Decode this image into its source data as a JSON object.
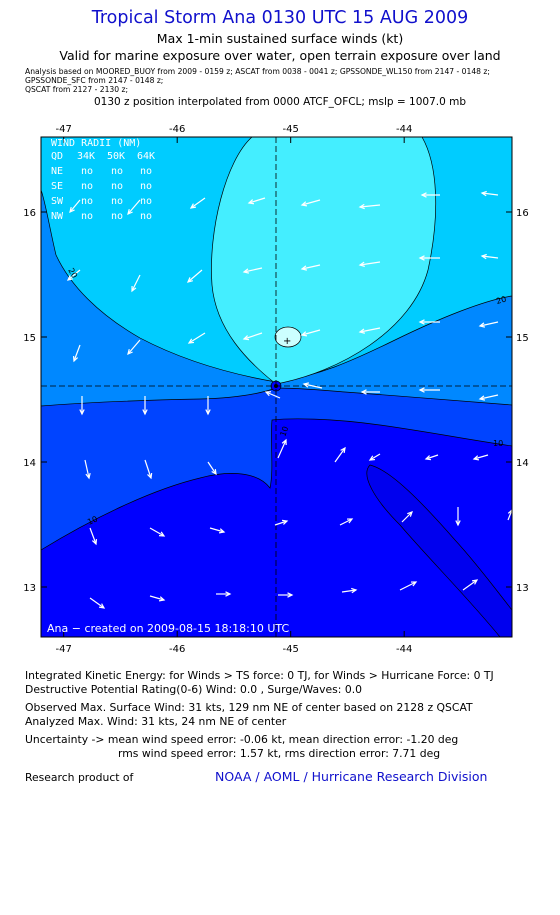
{
  "header": {
    "title": "Tropical Storm Ana 0130 UTC 15 AUG 2009",
    "subtitle": "Max 1-min sustained surface winds (kt)",
    "validity": "Valid for marine exposure over water, open terrain exposure over land",
    "analysis_lines": [
      "Analysis based on   MOORED_BUOY from 2009 - 0159 z;  ASCAT from 0038 - 0041 z;  GPSSONDE_WL150 from 2147 - 0148 z;",
      "GPSSONDE_SFC from 2147 - 0148 z;",
      "QSCAT from 2127 - 2130 z;"
    ],
    "position_line": "0130 z position interpolated from 0000 ATCF_OFCL; mslp = 1007.0 mb"
  },
  "map": {
    "lon_range": [
      -47.2,
      -43.05
    ],
    "lat_range": [
      12.6,
      16.6
    ],
    "lon_ticks": [
      "-47",
      "-46",
      "-45",
      "-44"
    ],
    "lat_ticks": [
      "13",
      "14",
      "15",
      "16"
    ],
    "center": {
      "lon": -45.1,
      "lat": 14.6
    },
    "contour_labels": [
      "20",
      "20",
      "10",
      "10",
      "10"
    ],
    "colors": {
      "band_0_10": "#0000ff",
      "band_10_20": "#0044ff",
      "band_20_30": "#0088ff",
      "band_30_40": "#00ccff",
      "band_40_50": "#44eeff",
      "axis_tick_color": "#000000",
      "vector_color": "#ffffff"
    },
    "wind_radii": {
      "title": "WIND RADII (NM)",
      "header": [
        "QD",
        "34K",
        "50K",
        "64K"
      ],
      "rows": [
        [
          "NE",
          "no",
          "no",
          "no"
        ],
        [
          "SE",
          "no",
          "no",
          "no"
        ],
        [
          "SW",
          "no",
          "no",
          "no"
        ],
        [
          "NW",
          "no",
          "no",
          "no"
        ]
      ]
    },
    "credit": "Ana  −  created on 2009-08-15 18:18:10 UTC"
  },
  "info": {
    "ike": "Integrated Kinetic Energy:  for Winds > TS force: 0 TJ,  for Winds > Hurricane Force: 0 TJ",
    "dpr": "Destructive Potential Rating(0-6)   Wind: 0.0 , Surge/Waves: 0.0",
    "observed": "Observed Max. Surface Wind: 31 kts, 129 nm NE of center based on 2128 z QSCAT",
    "analyzed": "Analyzed Max. Wind: 31 kts, 24 nm NE of center",
    "uncertainty_1": "Uncertainty -> mean wind speed error:  -0.06 kt,   mean direction error:  -1.20 deg",
    "uncertainty_2": "rms wind speed error: 1.57 kt,   rms direction error: 7.71 deg"
  },
  "footer": {
    "research": "Research product of",
    "org": "NOAA / AOML / Hurricane Research Division"
  }
}
